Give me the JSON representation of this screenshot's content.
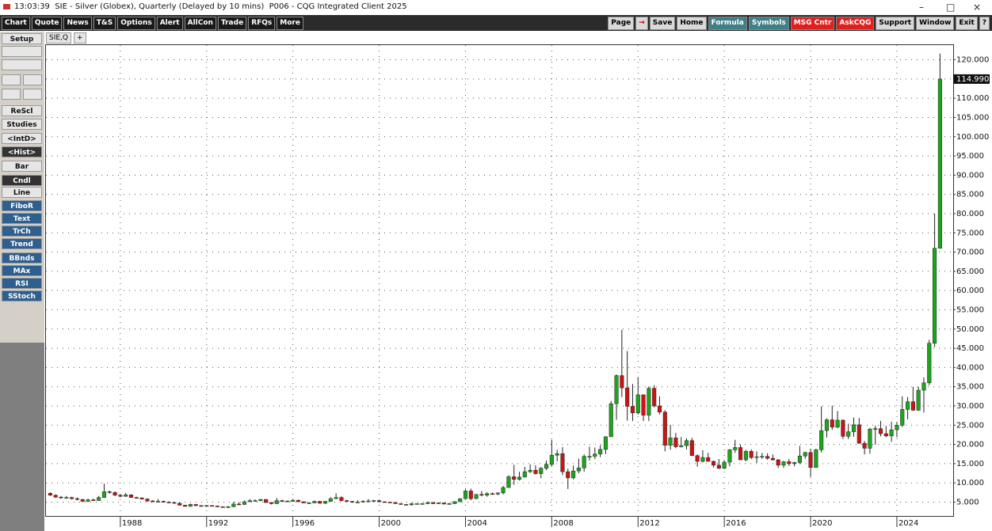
{
  "window": {
    "title": "13:03:39  SIE - Silver (Globex), Quarterly (Delayed by 10 mins)  P006 - CQG Integrated Client 2025"
  },
  "menu_left": [
    "Chart",
    "Quote",
    "News",
    "T&S",
    "Options",
    "Alert",
    "AllCon",
    "Trade",
    "RFQs",
    "More"
  ],
  "menu_right": [
    "Page",
    "Save",
    "Home",
    "Formula",
    "Symbols",
    "MSG Cntr",
    "AskCQG",
    "Support",
    "Window",
    "Exit",
    "?"
  ],
  "sidebar": [
    "Setup",
    "ReScl",
    "Studies",
    "<IntD>",
    "<Hist>",
    "Bar",
    "Cndl",
    "Line",
    "FiboR",
    "Text",
    "TrCh",
    "Trend",
    "BBnds",
    "MAx",
    "RSI",
    "SStoch"
  ],
  "tab": "SIE,Q",
  "tab_add": "+",
  "chart_data": {
    "type": "candlestick",
    "categories": [
      null,
      null,
      null,
      null,
      null,
      null,
      null,
      null,
      null,
      null,
      null,
      null,
      null,
      "1988",
      null,
      null,
      null,
      null,
      null,
      null,
      null,
      null,
      null,
      null,
      null,
      null,
      null,
      null,
      null,
      "1992",
      null,
      null,
      null,
      null,
      null,
      null,
      null,
      null,
      null,
      null,
      null,
      null,
      null,
      null,
      null,
      "1996",
      null,
      null,
      null,
      null,
      null,
      null,
      null,
      null,
      null,
      null,
      null,
      null,
      null,
      null,
      null,
      "2000",
      null,
      null,
      null,
      null,
      null,
      null,
      null,
      null,
      null,
      null,
      null,
      null,
      null,
      null,
      null,
      "2004",
      null,
      null,
      null,
      null,
      null,
      null,
      null,
      null,
      null,
      null,
      null,
      null,
      null,
      null,
      null,
      "2008",
      null,
      null,
      null,
      null,
      null,
      null,
      null,
      null,
      null,
      null,
      null,
      null,
      null,
      null,
      null,
      "2012",
      null,
      null,
      null,
      null,
      null,
      null,
      null,
      null,
      null,
      null,
      null,
      null,
      null,
      null,
      null,
      "2016",
      null,
      null,
      null,
      null,
      null,
      null,
      null,
      null,
      null,
      null,
      null,
      null,
      null,
      null,
      null,
      "2020",
      null,
      null,
      null,
      null,
      null,
      null,
      null,
      null,
      null,
      null,
      null,
      null,
      null,
      null,
      null,
      "2024",
      null,
      null,
      null,
      null,
      null,
      null,
      null,
      null
    ],
    "open": [
      7.3,
      6.8,
      6.3,
      6.1,
      6.2,
      5.9,
      5.7,
      5.2,
      5.6,
      5.4,
      6.2,
      7.7,
      7.5,
      6.8,
      6.5,
      6.9,
      6.2,
      6.1,
      5.8,
      5.3,
      5.2,
      5.2,
      5.0,
      4.9,
      4.7,
      4.2,
      3.9,
      4.4,
      4.1,
      3.9,
      4.1,
      4.0,
      3.8,
      3.7,
      3.8,
      4.5,
      4.4,
      5.1,
      5.4,
      5.4,
      5.7,
      4.9,
      4.6,
      5.4,
      5.3,
      5.2,
      5.5,
      5.1,
      4.8,
      4.8,
      5.2,
      4.7,
      5.2,
      5.9,
      6.2,
      5.4,
      5.2,
      5.0,
      5.0,
      5.2,
      5.3,
      5.4,
      5.1,
      5.0,
      4.9,
      4.6,
      4.4,
      4.3,
      4.6,
      4.6,
      4.6,
      4.9,
      4.6,
      4.8,
      4.5,
      4.6,
      5.1,
      5.9,
      7.9,
      5.9,
      7.0,
      6.8,
      7.2,
      7.1,
      7.4,
      8.8,
      11.6,
      10.9,
      11.5,
      12.9,
      13.3,
      12.4,
      13.8,
      14.8,
      17.2,
      17.6,
      12.9,
      11.3,
      13.1,
      13.9,
      16.9,
      16.9,
      17.5,
      18.7,
      22.0,
      30.6,
      37.9,
      34.7,
      29.9,
      28.2,
      32.9,
      27.6,
      34.6,
      30.0,
      28.4,
      19.8,
      21.7,
      19.4,
      19.7,
      21.0,
      17.1,
      15.6,
      16.6,
      15.6,
      14.6,
      13.8,
      15.4,
      18.6,
      19.2,
      16.0,
      18.2,
      16.6,
      16.8,
      16.9,
      16.4,
      16.0,
      14.6,
      15.5,
      15.0,
      15.3,
      17.0,
      17.9,
      14.0,
      18.6,
      23.6,
      26.4,
      24.5,
      26.3,
      22.1,
      23.3,
      25.1,
      20.3,
      19.0,
      24.0,
      24.1,
      22.8,
      22.2,
      23.8,
      25.0,
      29.1,
      31.1,
      28.9,
      34.1,
      36.0,
      46.3,
      71.0
    ],
    "high": [
      7.5,
      7.0,
      6.6,
      6.6,
      6.4,
      6.2,
      5.8,
      5.9,
      5.9,
      6.6,
      9.8,
      8.0,
      7.8,
      7.0,
      7.4,
      7.0,
      6.4,
      6.2,
      6.0,
      5.5,
      5.8,
      5.4,
      5.2,
      5.1,
      4.9,
      4.3,
      4.6,
      4.5,
      4.2,
      4.2,
      4.2,
      4.1,
      3.9,
      4.0,
      5.1,
      5.0,
      5.4,
      5.8,
      5.7,
      5.8,
      5.8,
      5.0,
      6.1,
      5.6,
      5.4,
      5.8,
      5.6,
      5.2,
      5.0,
      5.4,
      5.3,
      5.3,
      6.3,
      7.3,
      6.5,
      5.6,
      5.3,
      5.5,
      5.5,
      5.8,
      5.6,
      5.5,
      5.2,
      5.1,
      5.0,
      4.7,
      4.5,
      4.8,
      4.7,
      4.8,
      5.1,
      5.0,
      4.9,
      4.9,
      4.8,
      5.3,
      6.0,
      8.3,
      8.5,
      7.1,
      7.9,
      7.6,
      7.5,
      7.5,
      9.2,
      12.0,
      14.7,
      12.9,
      14.2,
      14.8,
      14.6,
      14.1,
      15.8,
      21.2,
      18.6,
      19.3,
      13.7,
      14.5,
      16.3,
      17.4,
      19.4,
      19.2,
      19.8,
      22.1,
      31.3,
      38.2,
      49.8,
      44.3,
      35.7,
      37.5,
      33.0,
      35.1,
      35.4,
      32.5,
      28.9,
      25.1,
      23.0,
      21.9,
      21.6,
      21.7,
      17.4,
      18.5,
      17.8,
      15.8,
      16.2,
      15.9,
      18.8,
      21.2,
      20.0,
      18.6,
      18.7,
      18.2,
      17.8,
      17.7,
      17.4,
      16.2,
      15.7,
      16.2,
      15.5,
      19.6,
      18.1,
      18.9,
      18.9,
      29.9,
      26.8,
      30.1,
      28.7,
      26.5,
      25.4,
      27.0,
      26.9,
      20.9,
      24.3,
      24.9,
      26.1,
      24.8,
      25.9,
      25.8,
      32.5,
      32.3,
      35.0,
      35.0,
      37.4,
      47.2,
      80.0,
      121.6
    ],
    "low": [
      6.6,
      6.1,
      5.9,
      5.9,
      5.7,
      5.5,
      5.0,
      5.0,
      5.3,
      5.4,
      6.1,
      7.2,
      6.6,
      6.3,
      6.4,
      6.1,
      6.0,
      5.7,
      5.1,
      5.0,
      5.0,
      4.9,
      4.8,
      4.6,
      4.1,
      3.8,
      3.8,
      3.9,
      3.8,
      3.8,
      3.9,
      3.7,
      3.6,
      3.5,
      3.7,
      4.2,
      4.3,
      5.0,
      5.1,
      5.2,
      4.8,
      4.4,
      4.5,
      5.0,
      5.0,
      5.1,
      5.0,
      4.7,
      4.6,
      4.7,
      4.6,
      4.5,
      5.1,
      5.8,
      5.2,
      5.0,
      4.8,
      4.8,
      4.9,
      5.1,
      5.1,
      5.0,
      4.9,
      4.8,
      4.6,
      4.3,
      4.2,
      4.1,
      4.4,
      4.5,
      4.5,
      4.5,
      4.5,
      4.4,
      4.4,
      4.5,
      5.0,
      5.8,
      5.5,
      5.8,
      6.5,
      6.4,
      6.9,
      6.8,
      7.0,
      8.7,
      9.5,
      10.6,
      11.4,
      12.6,
      12.2,
      11.2,
      13.3,
      14.3,
      15.6,
      12.0,
      8.4,
      10.9,
      12.5,
      12.9,
      15.8,
      16.2,
      16.7,
      17.5,
      22.0,
      26.4,
      32.3,
      26.2,
      26.1,
      27.7,
      26.1,
      26.1,
      29.6,
      27.8,
      18.2,
      18.6,
      19.0,
      19.2,
      18.7,
      17.0,
      14.2,
      15.3,
      15.5,
      14.0,
      13.6,
      13.6,
      14.3,
      17.8,
      16.0,
      15.6,
      16.2,
      15.2,
      16.2,
      16.0,
      15.8,
      13.9,
      13.9,
      14.4,
      14.3,
      14.9,
      16.3,
      11.6,
      14.0,
      17.9,
      21.8,
      23.8,
      24.2,
      21.4,
      21.4,
      22.0,
      20.2,
      17.4,
      17.6,
      19.9,
      22.1,
      21.9,
      20.7,
      21.9,
      24.5,
      26.5,
      28.7,
      28.7,
      28.3,
      35.4,
      45.3,
      70.9
    ],
    "close": [
      6.8,
      6.3,
      6.1,
      6.2,
      5.9,
      5.7,
      5.2,
      5.6,
      5.4,
      6.2,
      7.7,
      7.5,
      6.8,
      6.5,
      6.9,
      6.2,
      6.1,
      5.8,
      5.3,
      5.2,
      5.2,
      5.0,
      4.9,
      4.7,
      4.2,
      3.9,
      4.4,
      4.1,
      3.9,
      4.1,
      4.0,
      3.8,
      3.7,
      3.8,
      4.5,
      4.4,
      5.1,
      5.4,
      5.4,
      5.7,
      4.9,
      4.6,
      5.4,
      5.3,
      5.2,
      5.5,
      5.1,
      4.8,
      4.8,
      5.2,
      4.7,
      5.2,
      5.9,
      6.2,
      5.4,
      5.2,
      5.0,
      5.0,
      5.2,
      5.3,
      5.4,
      5.1,
      5.0,
      4.9,
      4.6,
      4.4,
      4.3,
      4.6,
      4.6,
      4.6,
      4.9,
      4.6,
      4.8,
      4.5,
      4.6,
      5.1,
      5.9,
      7.9,
      5.9,
      7.0,
      6.8,
      7.2,
      7.1,
      7.4,
      8.8,
      11.6,
      10.9,
      11.5,
      12.9,
      13.3,
      12.4,
      13.8,
      14.8,
      17.2,
      17.6,
      12.9,
      11.3,
      13.1,
      13.9,
      16.9,
      16.9,
      17.5,
      18.7,
      22.0,
      30.6,
      37.9,
      34.7,
      29.9,
      28.2,
      32.9,
      27.6,
      34.6,
      30.0,
      28.4,
      19.8,
      21.7,
      19.4,
      19.7,
      21.0,
      17.1,
      15.6,
      16.6,
      15.6,
      14.6,
      13.8,
      15.4,
      18.6,
      19.2,
      16.0,
      18.2,
      16.6,
      16.8,
      16.9,
      16.4,
      16.0,
      14.6,
      15.5,
      15.0,
      15.3,
      17.0,
      17.9,
      14.0,
      18.6,
      23.6,
      26.4,
      24.5,
      26.3,
      22.1,
      23.3,
      25.1,
      20.3,
      19.0,
      24.0,
      24.1,
      22.8,
      22.2,
      23.8,
      25.0,
      29.1,
      31.1,
      28.9,
      34.1,
      36.0,
      46.3,
      71.0,
      114.99
    ],
    "up_color": "#1ea51e",
    "down_color": "#cc1414",
    "ylim": [
      1.4,
      123.2
    ],
    "yticks": [
      {
        "value": 5,
        "label": "5.000"
      },
      {
        "value": 10,
        "label": "10.000"
      },
      {
        "value": 15,
        "label": "15.000"
      },
      {
        "value": 20,
        "label": "20.000"
      },
      {
        "value": 25,
        "label": "25.000"
      },
      {
        "value": 30,
        "label": "30.000"
      },
      {
        "value": 35,
        "label": "35.000"
      },
      {
        "value": 40,
        "label": "40.000"
      },
      {
        "value": 45,
        "label": "45.000"
      },
      {
        "value": 50,
        "label": "50.000"
      },
      {
        "value": 55,
        "label": "55.000"
      },
      {
        "value": 60,
        "label": "60.000"
      },
      {
        "value": 65,
        "label": "65.000"
      },
      {
        "value": 70,
        "label": "70.000"
      },
      {
        "value": 75,
        "label": "75.000"
      },
      {
        "value": 80,
        "label": "80.000"
      },
      {
        "value": 85,
        "label": "85.000"
      },
      {
        "value": 90,
        "label": "90.000"
      },
      {
        "value": 95,
        "label": "95.000"
      },
      {
        "value": 100,
        "label": "100.000"
      },
      {
        "value": 105,
        "label": "105.000"
      },
      {
        "value": 110,
        "label": "110.000"
      },
      {
        "value": 115,
        "label": "115.000"
      },
      {
        "value": 120,
        "label": "120.000"
      }
    ],
    "grid": true,
    "last_price": {
      "value": 114.99,
      "label": "114.990"
    }
  }
}
